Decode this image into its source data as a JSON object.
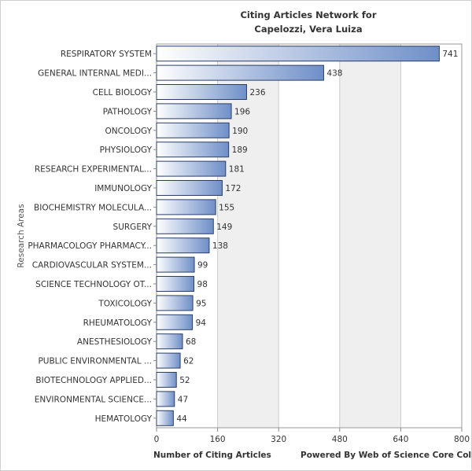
{
  "chart_data": {
    "type": "bar",
    "orientation": "horizontal",
    "title": "Citing Articles Network for",
    "subtitle": "Capelozzi, Vera Luiza",
    "xlabel": "Number of Citing Articles",
    "ylabel": "Research Areas",
    "credit": "Powered By Web of Science Core Colle",
    "xlim": [
      0,
      800
    ],
    "xticks": [
      0,
      160,
      320,
      480,
      640,
      800
    ],
    "categories": [
      "RESPIRATORY SYSTEM",
      "GENERAL INTERNAL MEDI...",
      "CELL BIOLOGY",
      "PATHOLOGY",
      "ONCOLOGY",
      "PHYSIOLOGY",
      "RESEARCH EXPERIMENTAL...",
      "IMMUNOLOGY",
      "BIOCHEMISTRY MOLECULA...",
      "SURGERY",
      "PHARMACOLOGY PHARMACY...",
      "CARDIOVASCULAR SYSTEM...",
      "SCIENCE TECHNOLOGY OT...",
      "TOXICOLOGY",
      "RHEUMATOLOGY",
      "ANESTHESIOLOGY",
      "PUBLIC ENVIRONMENTAL ...",
      "BIOTECHNOLOGY APPLIED...",
      "ENVIRONMENTAL SCIENCE...",
      "HEMATOLOGY"
    ],
    "values": [
      741,
      438,
      236,
      196,
      190,
      189,
      181,
      172,
      155,
      149,
      138,
      99,
      98,
      95,
      94,
      68,
      62,
      52,
      47,
      44
    ],
    "grid": true,
    "colors": {
      "bar_light": "#ffffff",
      "bar_dark": "#6f8fc8",
      "bar_border": "#2c3e66",
      "band_alt": "#efefef",
      "grid": "#cccccc"
    }
  }
}
